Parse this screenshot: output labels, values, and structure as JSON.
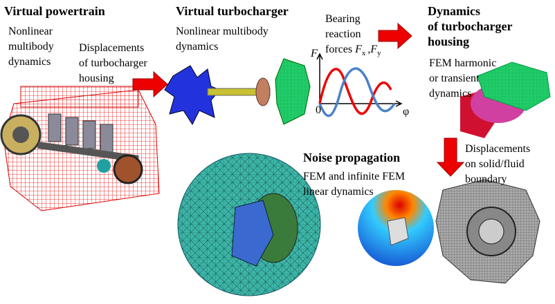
{
  "powertrain": {
    "title": "Virtual powertrain",
    "lines": [
      "Nonlinear",
      "multibody",
      "dynamics"
    ]
  },
  "displacements_housing": {
    "lines": [
      "Displacements",
      "of turbocharger",
      "housing"
    ]
  },
  "turbocharger": {
    "title": "Virtual turbocharger",
    "lines": [
      "Nonlinear multibody",
      "dynamics"
    ]
  },
  "bearing": {
    "lines": [
      "Bearing",
      "reaction"
    ],
    "forces": {
      "prefix": "forces",
      "f1": "F",
      "sub1": "x",
      "sep": ",",
      "f2": "F",
      "sub2": "y"
    }
  },
  "plot": {
    "y_label": "F",
    "origin": "0",
    "x_label": "φ"
  },
  "housing_dynamics": {
    "title_lines": [
      "Dynamics",
      "of turbocharger",
      "housing"
    ],
    "lines": [
      "FEM harmonic",
      "or transient",
      "dynamics"
    ]
  },
  "noise": {
    "title": "Noise propagation",
    "lines": [
      "FEM and infinite FEM",
      "linear dynamics"
    ]
  },
  "boundary": {
    "lines": [
      "Displacements",
      "on solid/fluid",
      "boundary"
    ]
  }
}
